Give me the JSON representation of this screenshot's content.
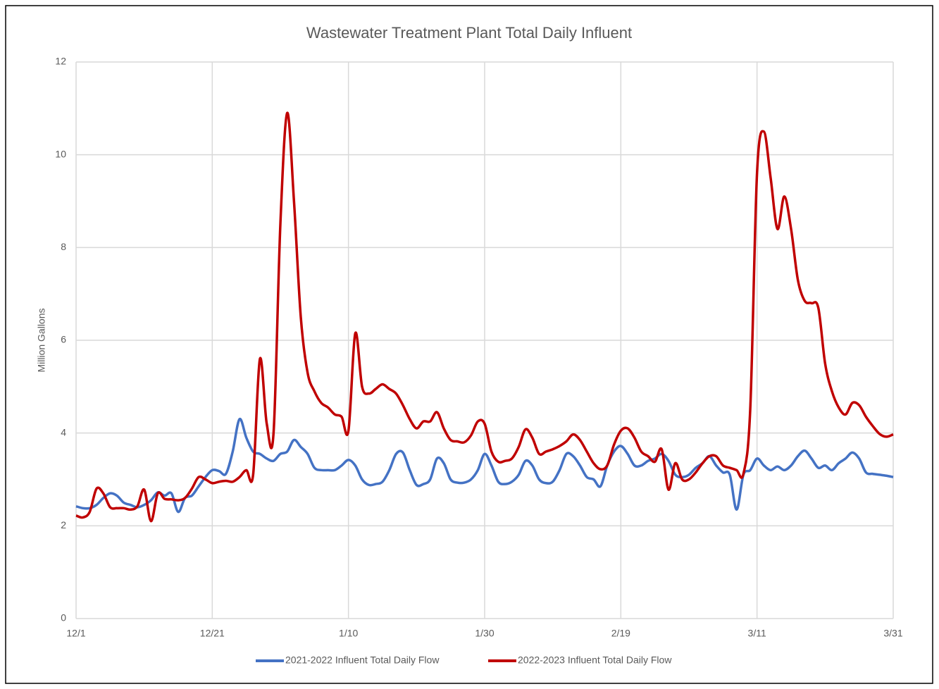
{
  "chart_data": {
    "type": "line",
    "title": "Wastewater Treatment Plant Total Daily Influent",
    "y_label": "Million Gallons",
    "categories": [
      "12/1",
      null,
      null,
      null,
      null,
      null,
      null,
      null,
      null,
      null,
      null,
      null,
      null,
      null,
      null,
      null,
      null,
      null,
      null,
      null,
      "12/21",
      null,
      null,
      null,
      null,
      null,
      null,
      null,
      null,
      null,
      null,
      null,
      null,
      null,
      null,
      null,
      null,
      null,
      null,
      null,
      "1/10",
      null,
      null,
      null,
      null,
      null,
      null,
      null,
      null,
      null,
      null,
      null,
      null,
      null,
      null,
      null,
      null,
      null,
      null,
      null,
      "1/30",
      null,
      null,
      null,
      null,
      null,
      null,
      null,
      null,
      null,
      null,
      null,
      null,
      null,
      null,
      null,
      null,
      null,
      null,
      null,
      "2/19",
      null,
      null,
      null,
      null,
      null,
      null,
      null,
      null,
      null,
      null,
      null,
      null,
      null,
      null,
      null,
      null,
      null,
      null,
      null,
      "3/11",
      null,
      null,
      null,
      null,
      null,
      null,
      null,
      null,
      null,
      null,
      null,
      null,
      null,
      null,
      null,
      null,
      null,
      null,
      null,
      "3/31"
    ],
    "series": [
      {
        "name": "2021-2022 Influent Total Daily Flow",
        "color": "#4472c4",
        "values": [
          2.42,
          2.38,
          2.38,
          2.45,
          2.6,
          2.7,
          2.65,
          2.5,
          2.45,
          2.4,
          2.45,
          2.55,
          2.72,
          2.65,
          2.7,
          2.3,
          2.6,
          2.65,
          2.85,
          3.05,
          3.2,
          3.18,
          3.12,
          3.6,
          4.3,
          3.9,
          3.6,
          3.55,
          3.45,
          3.4,
          3.55,
          3.6,
          3.85,
          3.7,
          3.55,
          3.25,
          3.2,
          3.2,
          3.2,
          3.3,
          3.42,
          3.3,
          3.0,
          2.88,
          2.9,
          2.95,
          3.2,
          3.55,
          3.58,
          3.2,
          2.88,
          2.9,
          3.0,
          3.45,
          3.35,
          3.0,
          2.93,
          2.93,
          3.0,
          3.2,
          3.55,
          3.3,
          2.95,
          2.9,
          2.95,
          3.1,
          3.4,
          3.3,
          3.0,
          2.92,
          2.95,
          3.2,
          3.55,
          3.5,
          3.3,
          3.05,
          3.0,
          2.85,
          3.3,
          3.6,
          3.72,
          3.55,
          3.3,
          3.3,
          3.4,
          3.45,
          3.55,
          3.4,
          3.1,
          3.05,
          3.1,
          3.25,
          3.35,
          3.5,
          3.3,
          3.15,
          3.1,
          2.35,
          3.1,
          3.2,
          3.45,
          3.3,
          3.2,
          3.28,
          3.2,
          3.3,
          3.5,
          3.62,
          3.45,
          3.25,
          3.3,
          3.2,
          3.35,
          3.45,
          3.58,
          3.45,
          3.15,
          3.12,
          3.1,
          3.08,
          3.05
        ]
      },
      {
        "name": "2022-2023 Influent Total Daily Flow",
        "color": "#c00000",
        "values": [
          2.22,
          2.18,
          2.3,
          2.8,
          2.7,
          2.4,
          2.38,
          2.38,
          2.35,
          2.42,
          2.78,
          2.1,
          2.7,
          2.58,
          2.57,
          2.55,
          2.6,
          2.8,
          3.05,
          3.0,
          2.92,
          2.95,
          2.97,
          2.95,
          3.05,
          3.2,
          3.1,
          5.6,
          4.2,
          4.0,
          8.5,
          10.9,
          9.0,
          6.5,
          5.3,
          4.9,
          4.65,
          4.55,
          4.4,
          4.35,
          4.05,
          6.15,
          5.0,
          4.85,
          4.95,
          5.05,
          4.95,
          4.85,
          4.6,
          4.3,
          4.1,
          4.25,
          4.25,
          4.45,
          4.1,
          3.85,
          3.82,
          3.8,
          3.95,
          4.25,
          4.2,
          3.6,
          3.38,
          3.4,
          3.45,
          3.7,
          4.08,
          3.9,
          3.55,
          3.6,
          3.65,
          3.72,
          3.82,
          3.97,
          3.85,
          3.6,
          3.35,
          3.22,
          3.3,
          3.75,
          4.05,
          4.1,
          3.9,
          3.6,
          3.5,
          3.38,
          3.65,
          2.78,
          3.35,
          3.0,
          3.0,
          3.15,
          3.35,
          3.5,
          3.5,
          3.3,
          3.25,
          3.2,
          3.12,
          4.5,
          9.6,
          10.5,
          9.5,
          8.4,
          9.1,
          8.4,
          7.3,
          6.85,
          6.8,
          6.7,
          5.5,
          4.9,
          4.55,
          4.4,
          4.65,
          4.6,
          4.35,
          4.15,
          3.98,
          3.92,
          3.97
        ]
      }
    ],
    "ylim": [
      0,
      12
    ],
    "yticks": [
      0,
      2,
      4,
      6,
      8,
      10,
      12
    ],
    "grid": true,
    "legend": "bottom"
  }
}
